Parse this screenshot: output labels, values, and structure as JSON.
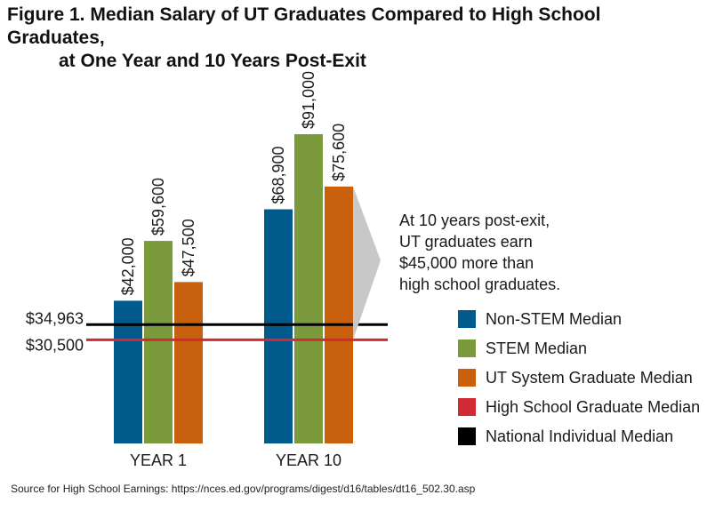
{
  "title_line1": "Figure 1. Median Salary of UT Graduates Compared to High School Graduates,",
  "title_line2": "at One Year and 10 Years Post-Exit",
  "source": "Source for High School Earnings: https://nces.ed.gov/programs/digest/d16/tables/dt16_502.30.asp",
  "callout": [
    "At 10 years post-exit,",
    "UT graduates earn",
    "$45,000 more than",
    "high school graduates."
  ],
  "colors": {
    "non_stem": "#005A8C",
    "stem": "#7A9A3C",
    "ut_system": "#C8600E",
    "high_school": "#D02A34",
    "national": "#000000",
    "callout_wedge": "#C8C8C8"
  },
  "chart_data": {
    "type": "bar",
    "categories": [
      "YEAR 1",
      "YEAR 10"
    ],
    "series": [
      {
        "name": "Non-STEM Median",
        "values": [
          42000,
          68900
        ],
        "labels": [
          "$42,000",
          "$68,900"
        ]
      },
      {
        "name": "STEM Median",
        "values": [
          59600,
          91000
        ],
        "labels": [
          "$59,600",
          "$91,000"
        ]
      },
      {
        "name": "UT System Graduate Median",
        "values": [
          47500,
          75600
        ],
        "labels": [
          "$47,500",
          "$75,600"
        ]
      }
    ],
    "reference_lines": [
      {
        "name": "High School Graduate Median",
        "value": 30500,
        "label": "$30,500"
      },
      {
        "name": "National Individual Median",
        "value": 34963,
        "label": "$34,963"
      }
    ],
    "legend": [
      "Non-STEM Median",
      "STEM Median",
      "UT System Graduate Median",
      "High School Graduate Median",
      "National Individual Median"
    ],
    "legend_position": "right",
    "ylim": [
      0,
      95000
    ],
    "grid": false
  }
}
